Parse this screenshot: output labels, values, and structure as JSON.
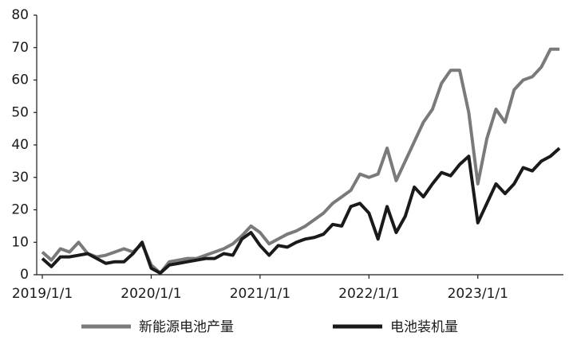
{
  "chart_data": {
    "type": "line",
    "x": [
      "2019/1/1",
      "2019/2/1",
      "2019/3/1",
      "2019/4/1",
      "2019/5/1",
      "2019/6/1",
      "2019/7/1",
      "2019/8/1",
      "2019/9/1",
      "2019/10/1",
      "2019/11/1",
      "2019/12/1",
      "2020/1/1",
      "2020/2/1",
      "2020/3/1",
      "2020/4/1",
      "2020/5/1",
      "2020/6/1",
      "2020/7/1",
      "2020/8/1",
      "2020/9/1",
      "2020/10/1",
      "2020/11/1",
      "2020/12/1",
      "2021/1/1",
      "2021/2/1",
      "2021/3/1",
      "2021/4/1",
      "2021/5/1",
      "2021/6/1",
      "2021/7/1",
      "2021/8/1",
      "2021/9/1",
      "2021/10/1",
      "2021/11/1",
      "2021/12/1",
      "2022/1/1",
      "2022/2/1",
      "2022/3/1",
      "2022/4/1",
      "2022/5/1",
      "2022/6/1",
      "2022/7/1",
      "2022/8/1",
      "2022/9/1",
      "2022/10/1",
      "2022/11/1",
      "2022/12/1",
      "2023/1/1",
      "2023/2/1",
      "2023/3/1",
      "2023/4/1",
      "2023/5/1",
      "2023/6/1",
      "2023/7/1",
      "2023/8/1",
      "2023/9/1",
      "2023/10/1"
    ],
    "xticks": [
      "2019/1/1",
      "2020/1/1",
      "2021/1/1",
      "2022/1/1",
      "2023/1/1"
    ],
    "series": [
      {
        "name": "新能源电池产量",
        "color": "#7a7a7a",
        "values": [
          7,
          4.5,
          8,
          7,
          10,
          6.5,
          5.5,
          6,
          7,
          8,
          7,
          9.5,
          3,
          0.5,
          4,
          4.5,
          5,
          5,
          6,
          7,
          8,
          9.5,
          12,
          15,
          13,
          9.5,
          11,
          12.5,
          13.5,
          15,
          17,
          19,
          22,
          24,
          26,
          31,
          30,
          31,
          39,
          29,
          35,
          41,
          47,
          51,
          59,
          63,
          63,
          50,
          28,
          42,
          51,
          47,
          57,
          60,
          61,
          64,
          69.5,
          69.5
        ]
      },
      {
        "name": "电池装机量",
        "color": "#1a1a1a",
        "values": [
          5,
          2.5,
          5.5,
          5.5,
          6,
          6.5,
          5,
          3.5,
          4,
          4,
          6.5,
          10,
          2,
          0.5,
          3,
          3.5,
          4,
          4.5,
          5,
          5,
          6.5,
          6,
          11,
          13,
          9,
          6,
          9,
          8.5,
          10,
          11,
          11.5,
          12.5,
          15.5,
          15,
          21,
          22,
          19,
          11,
          21,
          13,
          18,
          27,
          24,
          28,
          31.5,
          30.5,
          34,
          36.5,
          16,
          22,
          28,
          25,
          28,
          33,
          32,
          35,
          36.5,
          39
        ]
      }
    ],
    "ylim": [
      0,
      80
    ],
    "yticks": [
      0,
      10,
      20,
      30,
      40,
      50,
      60,
      70,
      80
    ]
  }
}
